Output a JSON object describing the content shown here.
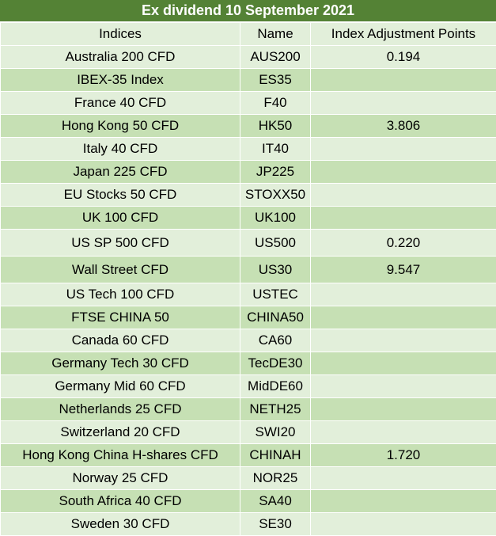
{
  "title": "Ex dividend 10 September 2021",
  "columns": [
    "Indices",
    "Name",
    "Index Adjustment Points"
  ],
  "rows": [
    {
      "index": "Australia 200 CFD",
      "name": "AUS200",
      "points": "0.194"
    },
    {
      "index": "IBEX-35 Index",
      "name": "ES35",
      "points": ""
    },
    {
      "index": "France 40 CFD",
      "name": "F40",
      "points": ""
    },
    {
      "index": "Hong Kong 50 CFD",
      "name": "HK50",
      "points": "3.806"
    },
    {
      "index": "Italy 40 CFD",
      "name": "IT40",
      "points": ""
    },
    {
      "index": "Japan 225 CFD",
      "name": "JP225",
      "points": ""
    },
    {
      "index": "EU Stocks 50 CFD",
      "name": "STOXX50",
      "points": ""
    },
    {
      "index": "UK 100 CFD",
      "name": "UK100",
      "points": ""
    },
    {
      "index": "US SP 500 CFD",
      "name": "US500",
      "points": "0.220"
    },
    {
      "index": "Wall Street CFD",
      "name": "US30",
      "points": "9.547"
    },
    {
      "index": "US Tech 100 CFD",
      "name": "USTEC",
      "points": ""
    },
    {
      "index": "FTSE CHINA 50",
      "name": "CHINA50",
      "points": ""
    },
    {
      "index": "Canada 60 CFD",
      "name": "CA60",
      "points": ""
    },
    {
      "index": "Germany Tech 30 CFD",
      "name": "TecDE30",
      "points": ""
    },
    {
      "index": "Germany Mid 60 CFD",
      "name": "MidDE60",
      "points": ""
    },
    {
      "index": "Netherlands 25 CFD",
      "name": "NETH25",
      "points": ""
    },
    {
      "index": "Switzerland 20 CFD",
      "name": "SWI20",
      "points": ""
    },
    {
      "index": "Hong Kong China H-shares CFD",
      "name": "CHINAH",
      "points": "1.720"
    },
    {
      "index": "Norway 25 CFD",
      "name": "NOR25",
      "points": ""
    },
    {
      "index": "South Africa 40 CFD",
      "name": "SA40",
      "points": ""
    },
    {
      "index": "Sweden 30 CFD",
      "name": "SE30",
      "points": ""
    }
  ],
  "colors": {
    "title_bg": "#548235",
    "row_light": "#e2efda",
    "row_dark": "#c6e0b4"
  }
}
